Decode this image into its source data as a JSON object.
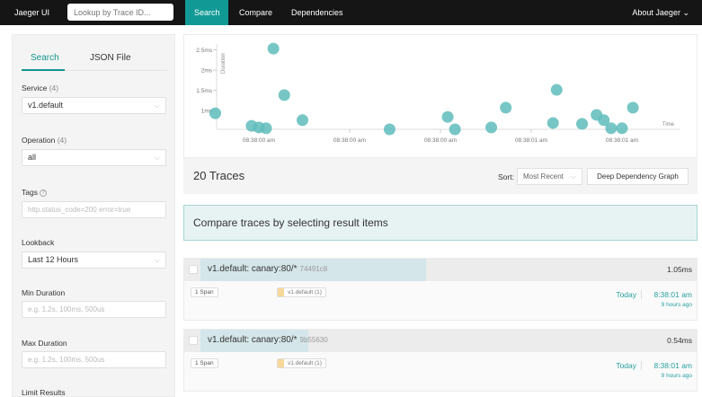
{
  "nav": {
    "brand": "Jaeger UI",
    "lookup_placeholder": "Lookup by Trace ID...",
    "tabs": [
      "Search",
      "Compare",
      "Dependencies"
    ],
    "active_tab": "Search",
    "about": "About Jaeger ⌄"
  },
  "sidebar": {
    "tabs": [
      "Search",
      "JSON File"
    ],
    "active_tab": "Search",
    "service": {
      "label": "Service",
      "count": "(4)",
      "value": "v1.default"
    },
    "operation": {
      "label": "Operation",
      "count": "(4)",
      "value": "all"
    },
    "tags": {
      "label": "Tags",
      "placeholder": "http.status_code=200 error=true"
    },
    "lookback": {
      "label": "Lookback",
      "value": "Last 12 Hours"
    },
    "min_duration": {
      "label": "Min Duration",
      "placeholder": "e.g. 1.2s, 100ms, 500us"
    },
    "max_duration": {
      "label": "Max Duration",
      "placeholder": "e.g. 1.2s, 100ms, 500us"
    },
    "limit": {
      "label": "Limit Results"
    }
  },
  "colors": {
    "accent": "#11968f",
    "point": "#5fbcbc",
    "nav": "#151515"
  },
  "chart_data": {
    "type": "scatter",
    "ylabel": "Duration",
    "xlabel": "Time",
    "y_ticks": [
      "1ms",
      "1.5ms",
      "2ms",
      "2.5ms"
    ],
    "x_ticks": [
      "08:38:00 am",
      "08:38:00 am",
      "08:38:00 am",
      "08:38:01 am",
      "08:38:01 am"
    ],
    "x_unit": "time",
    "y_unit": "ms",
    "points": [
      [
        "08:38:00.13",
        0.93
      ],
      [
        "08:38:00.23",
        0.62
      ],
      [
        "08:38:00.25",
        0.58
      ],
      [
        "08:38:00.27",
        0.56
      ],
      [
        "08:38:00.29",
        2.53
      ],
      [
        "08:38:00.32",
        1.38
      ],
      [
        "08:38:00.37",
        0.76
      ],
      [
        "08:38:00.61",
        0.53
      ],
      [
        "08:38:00.77",
        0.84
      ],
      [
        "08:38:00.79",
        0.53
      ],
      [
        "08:38:00.89",
        0.58
      ],
      [
        "08:38:00.93",
        1.07
      ],
      [
        "08:38:01.06",
        0.69
      ],
      [
        "08:38:01.07",
        1.51
      ],
      [
        "08:38:01.14",
        0.67
      ],
      [
        "08:38:01.18",
        0.89
      ],
      [
        "08:38:01.20",
        0.76
      ],
      [
        "08:38:01.22",
        0.56
      ],
      [
        "08:38:01.25",
        0.56
      ],
      [
        "08:38:01.28",
        1.07
      ]
    ]
  },
  "results": {
    "count": "20 Traces",
    "sort_label": "Sort:",
    "sort_value": "Most Recent",
    "ddg": "Deep Dependency Graph",
    "compare_banner": "Compare traces by selecting result items"
  },
  "traces": [
    {
      "name": "v1.default: canary:80/*",
      "id": "74491c8",
      "duration": "1.05ms",
      "duration_frac": 0.44,
      "spans": "1 Span",
      "service": "v1.default (1)",
      "day": "Today",
      "time": "8:38:01 am",
      "ago": "9 hours ago"
    },
    {
      "name": "v1.default: canary:80/*",
      "id": "9b55630",
      "duration": "0.54ms",
      "duration_frac": 0.21,
      "spans": "1 Span",
      "service": "v1.default (1)",
      "day": "Today",
      "time": "8:38:01 am",
      "ago": "9 hours ago"
    }
  ]
}
